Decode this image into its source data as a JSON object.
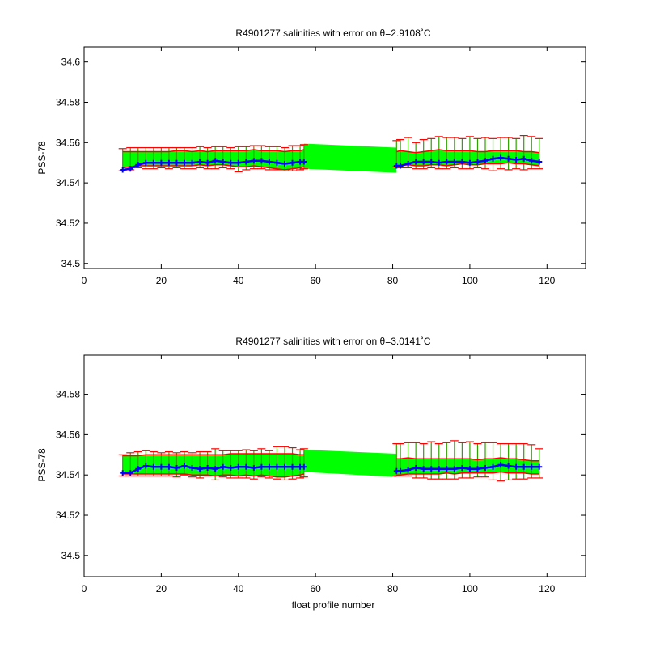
{
  "chart_data": [
    {
      "type": "line",
      "title": "R4901277 salinities with error on θ=2.9108˚C",
      "xlabel": "",
      "ylabel": "PSS-78",
      "xlim": [
        0,
        130
      ],
      "ylim": [
        34.4975,
        34.6075
      ],
      "xticks": [
        "0",
        "20",
        "40",
        "60",
        "80",
        "100",
        "120"
      ],
      "yticks": [
        "34.5",
        "34.52",
        "34.54",
        "34.56",
        "34.58",
        "34.6"
      ],
      "grid": false,
      "segments": [
        {
          "x": [
            10,
            12,
            14,
            16,
            18,
            20,
            22,
            24,
            26,
            28,
            30,
            32,
            34,
            36,
            38,
            40,
            42,
            44,
            46,
            48,
            50,
            52,
            54,
            56,
            57
          ],
          "salinity": [
            34.5465,
            34.547,
            34.549,
            34.55,
            34.55,
            34.55,
            34.55,
            34.55,
            34.55,
            34.55,
            34.5505,
            34.55,
            34.551,
            34.5505,
            34.55,
            34.55,
            34.5505,
            34.551,
            34.551,
            34.5505,
            34.55,
            34.5495,
            34.55,
            34.5505,
            34.5505
          ],
          "upper_error": [
            34.557,
            34.5575,
            34.5575,
            34.5575,
            34.5575,
            34.5575,
            34.5575,
            34.5575,
            34.5575,
            34.5575,
            34.558,
            34.5575,
            34.558,
            34.558,
            34.5575,
            34.558,
            34.558,
            34.5585,
            34.5585,
            34.558,
            34.558,
            34.5575,
            34.5585,
            34.5585,
            34.559
          ],
          "lower_error": [
            34.546,
            34.5465,
            34.5475,
            34.547,
            34.547,
            34.5475,
            34.547,
            34.5475,
            34.547,
            34.547,
            34.5475,
            34.547,
            34.547,
            34.5475,
            34.547,
            34.5455,
            34.5465,
            34.547,
            34.547,
            34.5465,
            34.5465,
            34.5465,
            34.546,
            34.5465,
            34.547
          ],
          "red_upper": [
            34.5555,
            34.5555,
            34.5555,
            34.5555,
            34.5555,
            34.5555,
            34.5555,
            34.556,
            34.556,
            34.5555,
            34.556,
            34.5555,
            34.556,
            34.556,
            34.556,
            34.556,
            34.556,
            34.5565,
            34.556,
            34.556,
            34.556,
            34.5555,
            34.556,
            34.556,
            34.5565
          ],
          "red_lower": [
            34.5475,
            34.548,
            34.5485,
            34.5485,
            34.5485,
            34.5485,
            34.5485,
            34.5485,
            34.5485,
            34.5485,
            34.549,
            34.5485,
            34.549,
            34.549,
            34.5485,
            34.548,
            34.548,
            34.5485,
            34.548,
            34.5475,
            34.547,
            34.5465,
            34.547,
            34.5475,
            34.548
          ]
        },
        {
          "x": [
            81,
            82,
            84,
            86,
            88,
            90,
            92,
            94,
            96,
            98,
            100,
            102,
            104,
            106,
            108,
            110,
            112,
            114,
            116,
            118
          ],
          "salinity": [
            34.5485,
            34.5485,
            34.5495,
            34.5505,
            34.5505,
            34.5505,
            34.55,
            34.5505,
            34.5505,
            34.5505,
            34.55,
            34.5505,
            34.551,
            34.552,
            34.5525,
            34.552,
            34.5515,
            34.552,
            34.551,
            34.5505
          ],
          "upper_error": [
            34.561,
            34.5615,
            34.5625,
            34.56,
            34.5615,
            34.562,
            34.563,
            34.5625,
            34.5625,
            34.562,
            34.563,
            34.562,
            34.5625,
            34.562,
            34.5625,
            34.5625,
            34.562,
            34.5635,
            34.563,
            34.562
          ],
          "lower_error": [
            34.548,
            34.5475,
            34.5475,
            34.547,
            34.547,
            34.5475,
            34.547,
            34.547,
            34.5475,
            34.547,
            34.547,
            34.5475,
            34.547,
            34.546,
            34.547,
            34.5465,
            34.547,
            34.5465,
            34.547,
            34.547
          ],
          "red_upper": [
            34.5555,
            34.556,
            34.5555,
            34.555,
            34.5555,
            34.556,
            34.5565,
            34.556,
            34.556,
            34.556,
            34.556,
            34.5555,
            34.5555,
            34.556,
            34.556,
            34.556,
            34.556,
            34.5555,
            34.5555,
            34.555
          ],
          "red_lower": [
            34.5485,
            34.5485,
            34.549,
            34.5485,
            34.5485,
            34.549,
            34.549,
            34.5485,
            34.549,
            34.5495,
            34.549,
            34.549,
            34.5495,
            34.5495,
            34.5495,
            34.55,
            34.5495,
            34.5495,
            34.549,
            34.5485
          ]
        }
      ],
      "gap_band": {
        "x": [
          57,
          81
        ],
        "upper": [
          34.5595,
          34.5575
        ],
        "lower": [
          34.547,
          34.545
        ]
      },
      "colors": {
        "salinity": "#0000ff",
        "error": "#ff0000",
        "band": "#00ff00",
        "band_dark": "#2ea300"
      }
    },
    {
      "type": "line",
      "title": "R4901277 salinities with error on θ=3.0141˚C",
      "xlabel": "float profile number",
      "ylabel": "PSS-78",
      "xlim": [
        0,
        130
      ],
      "ylim": [
        34.4895,
        34.5995
      ],
      "xticks": [
        "0",
        "20",
        "40",
        "60",
        "80",
        "100",
        "120"
      ],
      "yticks": [
        "34.5",
        "34.52",
        "34.54",
        "34.56",
        "34.58"
      ],
      "grid": false,
      "segments": [
        {
          "x": [
            10,
            12,
            14,
            16,
            18,
            20,
            22,
            24,
            26,
            28,
            30,
            32,
            34,
            36,
            38,
            40,
            42,
            44,
            46,
            48,
            50,
            52,
            54,
            56,
            57
          ],
          "salinity": [
            34.541,
            34.541,
            34.543,
            34.5445,
            34.544,
            34.544,
            34.544,
            34.5435,
            34.5445,
            34.5435,
            34.543,
            34.5435,
            34.543,
            34.544,
            34.5435,
            34.544,
            34.544,
            34.5435,
            34.544,
            34.544,
            34.544,
            34.544,
            34.544,
            34.544,
            34.544
          ],
          "upper_error": [
            34.55,
            34.551,
            34.5515,
            34.552,
            34.5515,
            34.551,
            34.5515,
            34.551,
            34.5515,
            34.551,
            34.5515,
            34.5515,
            34.553,
            34.552,
            34.552,
            34.552,
            34.5525,
            34.552,
            34.553,
            34.552,
            34.554,
            34.554,
            34.5535,
            34.5525,
            34.553
          ],
          "lower_error": [
            34.5395,
            34.5395,
            34.5395,
            34.5395,
            34.5395,
            34.5395,
            34.5395,
            34.539,
            34.54,
            34.539,
            34.5385,
            34.5395,
            34.5375,
            34.539,
            34.5385,
            34.5385,
            34.5385,
            34.538,
            34.539,
            34.5385,
            34.538,
            34.5375,
            34.538,
            34.5385,
            34.539
          ],
          "red_upper": [
            34.5495,
            34.5495,
            34.5495,
            34.55,
            34.55,
            34.55,
            34.55,
            34.55,
            34.55,
            34.55,
            34.55,
            34.55,
            34.55,
            34.55,
            34.5505,
            34.5505,
            34.5505,
            34.5505,
            34.5505,
            34.5505,
            34.5505,
            34.5505,
            34.5505,
            34.55,
            34.55
          ],
          "red_lower": [
            34.5405,
            34.5405,
            34.5405,
            34.5405,
            34.5405,
            34.5405,
            34.5405,
            34.5405,
            34.5405,
            34.54,
            34.54,
            34.54,
            34.5395,
            34.54,
            34.54,
            34.5395,
            34.54,
            34.5395,
            34.54,
            34.5395,
            34.539,
            34.539,
            34.5395,
            34.54,
            34.5405
          ]
        },
        {
          "x": [
            81,
            82,
            84,
            86,
            88,
            90,
            92,
            94,
            96,
            98,
            100,
            102,
            104,
            106,
            108,
            110,
            112,
            114,
            116,
            118
          ],
          "salinity": [
            34.542,
            34.542,
            34.5425,
            34.5435,
            34.543,
            34.543,
            34.543,
            34.543,
            34.543,
            34.5435,
            34.543,
            34.543,
            34.5435,
            34.544,
            34.545,
            34.5445,
            34.544,
            34.544,
            34.544,
            34.544
          ],
          "upper_error": [
            34.5555,
            34.5555,
            34.556,
            34.556,
            34.5555,
            34.5565,
            34.5555,
            34.556,
            34.557,
            34.556,
            34.5565,
            34.5555,
            34.556,
            34.556,
            34.5555,
            34.5555,
            34.5555,
            34.5555,
            34.555,
            34.553
          ],
          "lower_error": [
            34.5395,
            34.5395,
            34.5395,
            34.5385,
            34.5385,
            34.538,
            34.538,
            34.538,
            34.538,
            34.5385,
            34.5385,
            34.539,
            34.539,
            34.5375,
            34.537,
            34.5375,
            34.538,
            34.538,
            34.5385,
            34.5385
          ],
          "red_upper": [
            34.548,
            34.548,
            34.5485,
            34.548,
            34.548,
            34.548,
            34.548,
            34.548,
            34.548,
            34.548,
            34.548,
            34.5475,
            34.548,
            34.548,
            34.5485,
            34.548,
            34.548,
            34.5475,
            34.547,
            34.547
          ],
          "red_lower": [
            34.54,
            34.54,
            34.5405,
            34.5405,
            34.5405,
            34.5405,
            34.5405,
            34.541,
            34.5405,
            34.541,
            34.541,
            34.541,
            34.541,
            34.541,
            34.5415,
            34.541,
            34.541,
            34.541,
            34.5405,
            34.5405
          ]
        }
      ],
      "gap_band": {
        "x": [
          57,
          81
        ],
        "upper": [
          34.5525,
          34.5505
        ],
        "lower": [
          34.5415,
          34.539
        ]
      },
      "colors": {
        "salinity": "#0000ff",
        "error": "#ff0000",
        "band": "#00ff00",
        "band_dark": "#2ea300"
      }
    }
  ]
}
